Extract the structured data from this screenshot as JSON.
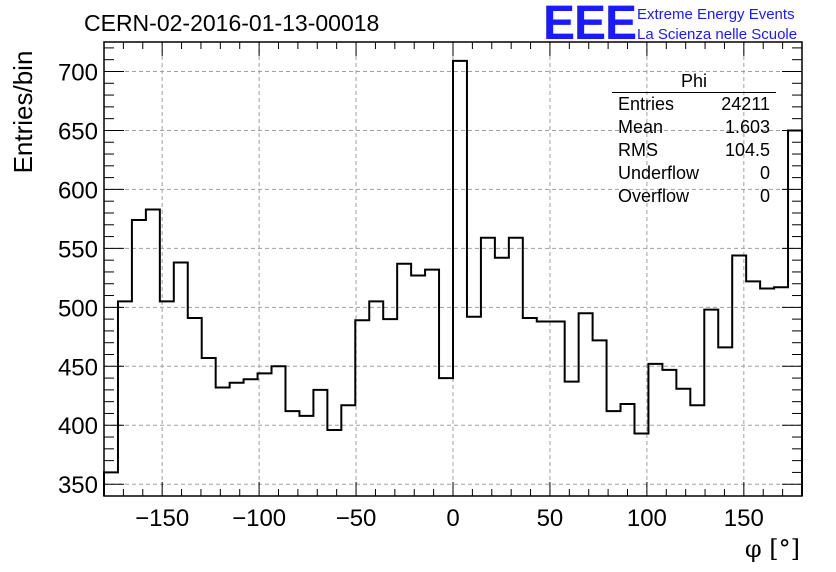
{
  "header": {
    "title": "CERN-02-2016-01-13-00018",
    "logo_text": "EEE",
    "logo_line1": "Extreme Energy Events",
    "logo_line2": "La Scienza nelle Scuole"
  },
  "stats_box": {
    "title": "Phi",
    "rows": [
      {
        "label": "Entries",
        "value": "24211"
      },
      {
        "label": "Mean",
        "value": "1.603"
      },
      {
        "label": "RMS",
        "value": "104.5"
      },
      {
        "label": "Underflow",
        "value": "0"
      },
      {
        "label": "Overflow",
        "value": "0"
      }
    ]
  },
  "chart_data": {
    "type": "bar",
    "style": "step-histogram",
    "title": "CERN-02-2016-01-13-00018",
    "xlabel": "φ [°]",
    "ylabel": "Entries/bin",
    "xlim": [
      -180,
      180
    ],
    "ylim": [
      340,
      725
    ],
    "bin_width": 7.2,
    "x_ticks": [
      -150,
      -100,
      -50,
      0,
      50,
      100,
      150
    ],
    "y_ticks": [
      350,
      400,
      450,
      500,
      550,
      600,
      650,
      700
    ],
    "grid": true,
    "values": [
      360,
      505,
      574,
      583,
      505,
      538,
      491,
      457,
      432,
      436,
      439,
      444,
      450,
      412,
      408,
      430,
      396,
      417,
      489,
      505,
      490,
      537,
      527,
      532,
      440,
      709,
      492,
      559,
      542,
      559,
      491,
      488,
      488,
      437,
      495,
      472,
      412,
      418,
      393,
      452,
      447,
      431,
      417,
      498,
      466,
      544,
      522,
      516,
      517,
      650
    ],
    "colors": {
      "line": "#000000",
      "grid": "#a0a0a0",
      "logo": "#1a1aff"
    }
  }
}
